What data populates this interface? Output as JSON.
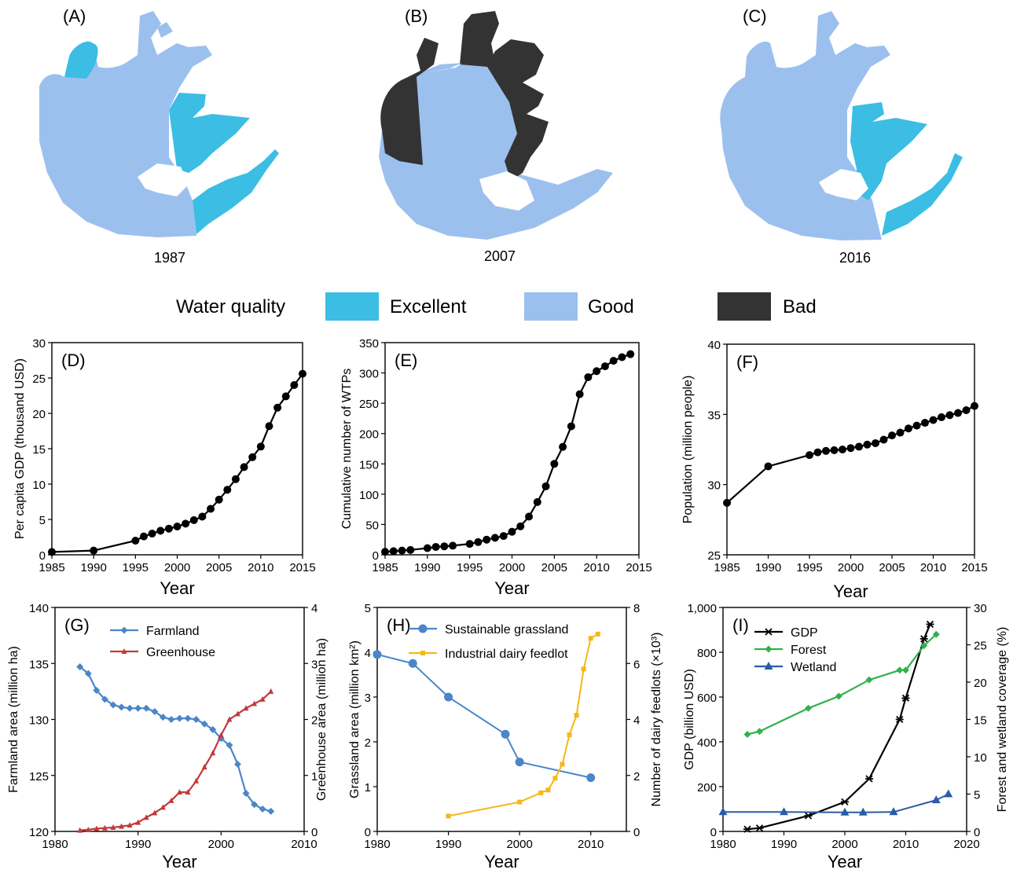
{
  "colors": {
    "excellent": "#3bbde4",
    "good": "#9cc0ee",
    "bad": "#333333",
    "blue": "#4a86c8",
    "red": "#c1393a",
    "yellow": "#f6b716",
    "green": "#2fb34c",
    "navy": "#2a5ba8"
  },
  "maps": [
    {
      "panel": "(A)",
      "year": "1987"
    },
    {
      "panel": "(B)",
      "year": "2007"
    },
    {
      "panel": "(C)",
      "year": "2016"
    }
  ],
  "legend": {
    "title": "Water quality",
    "items": [
      {
        "label": "Excellent",
        "color": "#3bbde4"
      },
      {
        "label": "Good",
        "color": "#9cc0ee"
      },
      {
        "label": "Bad",
        "color": "#333333"
      }
    ]
  },
  "chart_data": [
    {
      "id": "D",
      "panel": "(D)",
      "type": "line",
      "xlabel": "Year",
      "ylabel": "Per capita GDP (thousand USD)",
      "xlim": [
        1985,
        2015
      ],
      "ylim": [
        0,
        30
      ],
      "xticks": [
        1985,
        1990,
        1995,
        2000,
        2005,
        2010,
        2015
      ],
      "yticks": [
        0,
        5,
        10,
        15,
        20,
        25,
        30
      ],
      "series": [
        {
          "x": [
            1985,
            1990,
            1995,
            1996,
            1997,
            1998,
            1999,
            2000,
            2001,
            2002,
            2003,
            2004,
            2005,
            2006,
            2007,
            2008,
            2009,
            2010,
            2011,
            2012,
            2013,
            2014,
            2015
          ],
          "y": [
            0.4,
            0.6,
            2.0,
            2.6,
            3.0,
            3.4,
            3.7,
            4.0,
            4.4,
            4.9,
            5.4,
            6.5,
            7.8,
            9.2,
            10.7,
            12.4,
            13.8,
            15.3,
            18.2,
            20.8,
            22.4,
            24.0,
            25.6
          ]
        }
      ]
    },
    {
      "id": "E",
      "panel": "(E)",
      "type": "line",
      "xlabel": "Year",
      "ylabel": "Cumulative number of WTPs",
      "xlim": [
        1985,
        2015
      ],
      "ylim": [
        0,
        350
      ],
      "xticks": [
        1985,
        1990,
        1995,
        2000,
        2005,
        2010,
        2015
      ],
      "yticks": [
        0,
        50,
        100,
        150,
        200,
        250,
        300,
        350
      ],
      "series": [
        {
          "x": [
            1985,
            1986,
            1987,
            1988,
            1990,
            1991,
            1992,
            1993,
            1995,
            1996,
            1997,
            1998,
            1999,
            2000,
            2001,
            2002,
            2003,
            2004,
            2005,
            2006,
            2007,
            2008,
            2009,
            2010,
            2011,
            2012,
            2013,
            2014
          ],
          "y": [
            5,
            6,
            7,
            8,
            11,
            13,
            14,
            15,
            18,
            21,
            25,
            28,
            31,
            38,
            47,
            63,
            87,
            113,
            150,
            178,
            212,
            265,
            293,
            303,
            311,
            320,
            326,
            331
          ]
        }
      ]
    },
    {
      "id": "F",
      "panel": "(F)",
      "type": "line",
      "xlabel": "Year",
      "ylabel": "Population (million people)",
      "xlim": [
        1985,
        2015
      ],
      "ylim": [
        25,
        40
      ],
      "xticks": [
        1985,
        1990,
        1995,
        2000,
        2005,
        2010,
        2015
      ],
      "yticks": [
        25,
        30,
        35,
        40
      ],
      "series": [
        {
          "x": [
            1985,
            1990,
            1995,
            1996,
            1997,
            1998,
            1999,
            2000,
            2001,
            2002,
            2003,
            2004,
            2005,
            2006,
            2007,
            2008,
            2009,
            2010,
            2011,
            2012,
            2013,
            2014,
            2015
          ],
          "y": [
            28.7,
            31.3,
            32.1,
            32.3,
            32.4,
            32.45,
            32.5,
            32.6,
            32.7,
            32.85,
            32.95,
            33.2,
            33.5,
            33.7,
            34.0,
            34.2,
            34.4,
            34.6,
            34.8,
            34.95,
            35.1,
            35.3,
            35.6
          ]
        }
      ]
    },
    {
      "id": "G",
      "panel": "(G)",
      "type": "line",
      "xlabel": "Year",
      "ylabel": "Farmland area (million ha)",
      "y2label": "Greenhouse area (million ha)",
      "xlim": [
        1980,
        2010
      ],
      "ylim": [
        120,
        140
      ],
      "y2lim": [
        0,
        4
      ],
      "xticks": [
        1980,
        1990,
        2000,
        2010
      ],
      "yticks": [
        120,
        125,
        130,
        135,
        140
      ],
      "y2ticks": [
        0,
        1,
        2,
        3,
        4
      ],
      "series": [
        {
          "name": "Farmland",
          "axis": "left",
          "x": [
            1983,
            1984,
            1985,
            1986,
            1987,
            1988,
            1989,
            1990,
            1991,
            1992,
            1993,
            1994,
            1995,
            1996,
            1997,
            1998,
            1999,
            2000,
            2001,
            2002,
            2003,
            2004,
            2005,
            2006
          ],
          "y": [
            134.7,
            134.1,
            132.6,
            131.8,
            131.3,
            131.1,
            131.0,
            131.0,
            131.0,
            130.7,
            130.2,
            130.0,
            130.1,
            130.1,
            130.0,
            129.6,
            129.1,
            128.3,
            127.7,
            126.0,
            123.4,
            122.4,
            122.0,
            121.8
          ]
        },
        {
          "name": "Greenhouse",
          "axis": "right",
          "x": [
            1983,
            1984,
            1985,
            1986,
            1987,
            1988,
            1989,
            1990,
            1991,
            1992,
            1993,
            1994,
            1995,
            1996,
            1997,
            1998,
            1999,
            2000,
            2001,
            2002,
            2003,
            2004,
            2005,
            2006
          ],
          "y": [
            0.02,
            0.03,
            0.05,
            0.06,
            0.07,
            0.09,
            0.11,
            0.16,
            0.25,
            0.33,
            0.43,
            0.55,
            0.7,
            0.7,
            0.9,
            1.15,
            1.4,
            1.72,
            2.0,
            2.1,
            2.2,
            2.28,
            2.36,
            2.5
          ]
        }
      ]
    },
    {
      "id": "H",
      "panel": "(H)",
      "type": "line",
      "xlabel": "Year",
      "ylabel": "Grassland area (million km²)",
      "y2label": "Number of dairy feedlots (×10³)",
      "xlim": [
        1980,
        2015
      ],
      "ylim": [
        0,
        5
      ],
      "y2lim": [
        0,
        8
      ],
      "xticks": [
        1980,
        1990,
        2000,
        2010
      ],
      "yticks": [
        0,
        1,
        2,
        3,
        4,
        5
      ],
      "y2ticks": [
        0,
        2,
        4,
        6,
        8
      ],
      "series": [
        {
          "name": "Sustainable grassland",
          "axis": "left",
          "x": [
            1980,
            1985,
            1990,
            1998,
            2000,
            2010
          ],
          "y": [
            3.95,
            3.75,
            3.0,
            2.17,
            1.55,
            1.2
          ]
        },
        {
          "name": "Industrial dairy feedlot",
          "axis": "right",
          "x": [
            1990,
            2000,
            2003,
            2004,
            2005,
            2006,
            2007,
            2008,
            2009,
            2010,
            2011
          ],
          "y": [
            0.55,
            1.05,
            1.38,
            1.48,
            1.9,
            2.4,
            3.45,
            4.15,
            5.8,
            6.9,
            7.05
          ]
        }
      ]
    },
    {
      "id": "I",
      "panel": "(I)",
      "type": "line",
      "xlabel": "Year",
      "ylabel": "GDP (billion USD)",
      "y2label": "Forest and wetland coverage (%)",
      "xlim": [
        1980,
        2020
      ],
      "ylim": [
        0,
        1000
      ],
      "y2lim": [
        0,
        30
      ],
      "xticks": [
        1980,
        1990,
        2000,
        2010,
        2020
      ],
      "yticks": [
        0,
        200,
        400,
        600,
        800,
        1000
      ],
      "y2ticks": [
        0,
        5,
        10,
        15,
        20,
        25,
        30
      ],
      "series": [
        {
          "name": "GDP",
          "axis": "left",
          "x": [
            1984,
            1986,
            1994,
            2000,
            2004,
            2009,
            2010,
            2013,
            2014
          ],
          "y": [
            10,
            15,
            70,
            132,
            235,
            500,
            595,
            860,
            925
          ]
        },
        {
          "name": "Forest",
          "axis": "right",
          "x": [
            1984,
            1986,
            1994,
            1999,
            2004,
            2009,
            2010,
            2013,
            2015
          ],
          "y": [
            13.0,
            13.4,
            16.5,
            18.1,
            20.3,
            21.6,
            21.6,
            24.9,
            26.4
          ]
        },
        {
          "name": "Wetland",
          "axis": "right",
          "x": [
            1980,
            1990,
            2000,
            2003,
            2008,
            2015,
            2017
          ],
          "y": [
            2.6,
            2.6,
            2.55,
            2.55,
            2.6,
            4.2,
            5.0
          ]
        }
      ]
    }
  ]
}
